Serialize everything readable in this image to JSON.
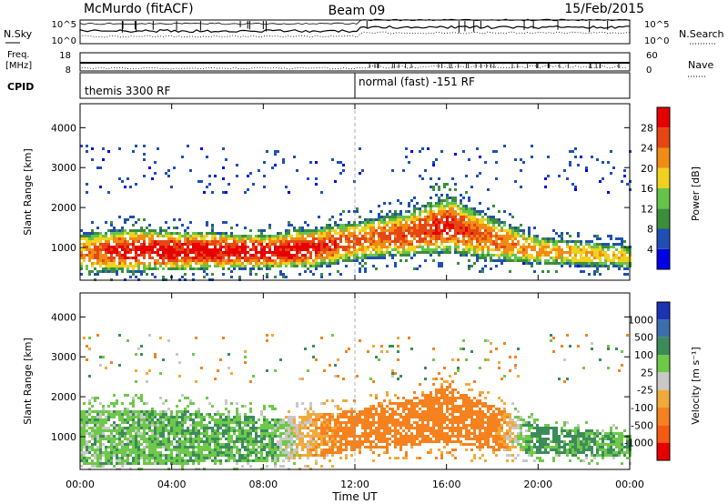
{
  "header": {
    "site": "McMurdo (fitACF)",
    "beam": "Beam 09",
    "date": "15/Feb/2015"
  },
  "strips": {
    "nsky_label": "N.Sky",
    "nsearch_label": "N.Search",
    "nsky_ticks": [
      "10^5",
      "10^0"
    ],
    "freq_label_1": "Freq.",
    "freq_label_2": "[MHz]",
    "freq_ticks": [
      "18",
      "8"
    ],
    "nave_label": "Nave",
    "nave_ticks": [
      "60",
      "0"
    ],
    "cpid_label": "CPID",
    "cpid_segments": [
      {
        "label": "themis 3300 RF",
        "start_hour": 0,
        "end_hour": 12
      },
      {
        "label": "normal (fast) -151 RF",
        "start_hour": 12,
        "end_hour": 24
      }
    ]
  },
  "colors": {
    "power_scale": [
      "#0000e6",
      "#1f4fb4",
      "#3c8d3c",
      "#66c34a",
      "#f0d21e",
      "#f08c14",
      "#e64614",
      "#e60000"
    ],
    "velocity_scale": [
      "#e60000",
      "#f55a14",
      "#f5821e",
      "#f0aa3c",
      "#c8c8c8",
      "#6ec84a",
      "#3c8c5a",
      "#3c6eaa",
      "#1e32b4"
    ]
  },
  "chart_data": [
    {
      "type": "heatmap",
      "name": "power",
      "ylabel": "Slant Range [km]",
      "xlabel": "Time UT",
      "xlim": [
        0,
        24
      ],
      "ylim": [
        180,
        4600
      ],
      "x_ticks": [
        "00:00",
        "04:00",
        "08:00",
        "12:00",
        "16:00",
        "20:00",
        "00:00"
      ],
      "y_ticks": [
        1000,
        2000,
        3000,
        4000
      ],
      "colorbar": {
        "label": "Power [dB]",
        "ticks": [
          4,
          8,
          12,
          16,
          20,
          24,
          28
        ],
        "range": [
          0,
          32
        ]
      },
      "echo_band": [
        {
          "hour": 0,
          "low": 400,
          "high": 1400,
          "peak_power": 22
        },
        {
          "hour": 2,
          "low": 420,
          "high": 1500,
          "peak_power": 30
        },
        {
          "hour": 4,
          "low": 450,
          "high": 1450,
          "peak_power": 30
        },
        {
          "hour": 6,
          "low": 480,
          "high": 1400,
          "peak_power": 30
        },
        {
          "hour": 8,
          "low": 500,
          "high": 1350,
          "peak_power": 30
        },
        {
          "hour": 10,
          "low": 520,
          "high": 1500,
          "peak_power": 30
        },
        {
          "hour": 12,
          "low": 700,
          "high": 1700,
          "peak_power": 24
        },
        {
          "hour": 14,
          "low": 800,
          "high": 1900,
          "peak_power": 26
        },
        {
          "hour": 16,
          "low": 900,
          "high": 2300,
          "peak_power": 28
        },
        {
          "hour": 18,
          "low": 700,
          "high": 1800,
          "peak_power": 24
        },
        {
          "hour": 20,
          "low": 600,
          "high": 1300,
          "peak_power": 22
        },
        {
          "hour": 24,
          "low": 500,
          "high": 1100,
          "peak_power": 18
        }
      ]
    },
    {
      "type": "heatmap",
      "name": "velocity",
      "ylabel": "Slant Range [km]",
      "xlabel": "Time UT",
      "xlim": [
        0,
        24
      ],
      "ylim": [
        180,
        4600
      ],
      "x_ticks": [
        "00:00",
        "04:00",
        "08:00",
        "12:00",
        "16:00",
        "20:00",
        "00:00"
      ],
      "y_ticks": [
        1000,
        2000,
        3000,
        4000
      ],
      "colorbar": {
        "label": "Velocity [m s⁻¹]",
        "ticks": [
          "1000",
          "500",
          "100",
          "25",
          "-25",
          "-100",
          "-500",
          "-1000"
        ]
      },
      "echo_band": [
        {
          "hour": 0,
          "low": 300,
          "high": 1700,
          "velocity": 60
        },
        {
          "hour": 4,
          "low": 350,
          "high": 1700,
          "velocity": 80
        },
        {
          "hour": 8,
          "low": 400,
          "high": 1500,
          "velocity": 100
        },
        {
          "hour": 10,
          "low": 500,
          "high": 1600,
          "velocity": -60
        },
        {
          "hour": 12,
          "low": 700,
          "high": 1700,
          "velocity": -200
        },
        {
          "hour": 14,
          "low": 800,
          "high": 1900,
          "velocity": -300
        },
        {
          "hour": 16,
          "low": 900,
          "high": 2300,
          "velocity": -250
        },
        {
          "hour": 18,
          "low": 700,
          "high": 1800,
          "velocity": -150
        },
        {
          "hour": 20,
          "low": 600,
          "high": 1300,
          "velocity": 150
        },
        {
          "hour": 24,
          "low": 500,
          "high": 1100,
          "velocity": 80
        }
      ]
    }
  ]
}
